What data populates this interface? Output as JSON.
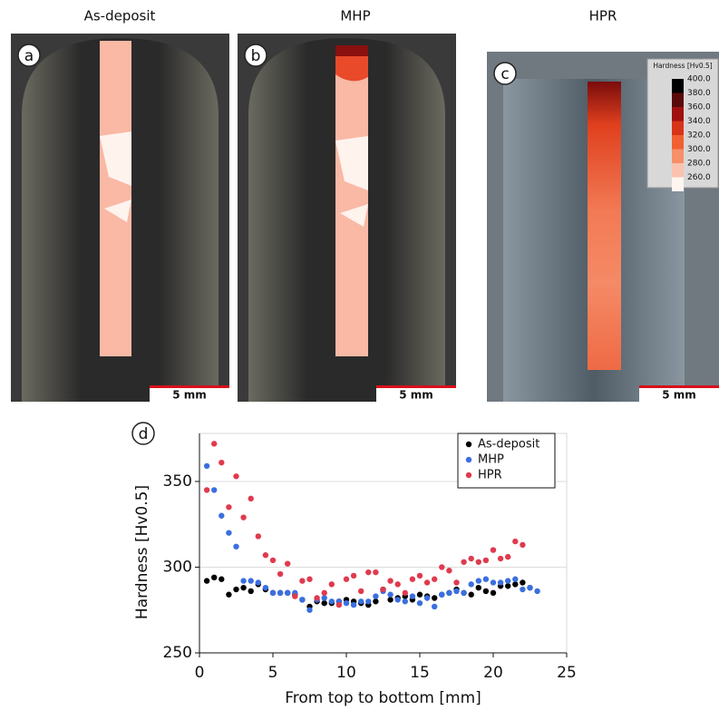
{
  "panels": [
    {
      "letter": "a",
      "title": "As-deposit",
      "scale_bar": "5 mm"
    },
    {
      "letter": "b",
      "title": "MHP",
      "scale_bar": "5 mm"
    },
    {
      "letter": "c",
      "title": "HPR",
      "scale_bar": "5 mm"
    }
  ],
  "colorbar": {
    "title": "Hardness [Hv0.5]",
    "ticks": [
      {
        "value": 400,
        "label": "400.0"
      },
      {
        "value": 380,
        "label": "380.0"
      },
      {
        "value": 360,
        "label": "360.0"
      },
      {
        "value": 340,
        "label": "340.0"
      },
      {
        "value": 320,
        "label": "320.0"
      },
      {
        "value": 300,
        "label": "300.0"
      },
      {
        "value": 280,
        "label": "280.0"
      },
      {
        "value": 260,
        "label": "260.0"
      }
    ],
    "colors": [
      "#000000",
      "#5a0a0a",
      "#a01010",
      "#d8341a",
      "#f06030",
      "#f7906a",
      "#fbc2b0",
      "#fff5f0"
    ]
  },
  "chart_data": {
    "type": "scatter",
    "panel_letter": "d",
    "x_label": "From top to bottom [mm]",
    "y_label": "Hardness [Hv0.5]",
    "xlim": [
      0,
      25
    ],
    "xticks": [
      0,
      5,
      10,
      15,
      20,
      25
    ],
    "ylim": [
      250,
      378
    ],
    "yticks": [
      250,
      300,
      350
    ],
    "grid": true,
    "legend_position": "upper right",
    "series": [
      {
        "name": "As-deposit",
        "color": "#000000",
        "x": [
          0.5,
          1,
          1.5,
          2,
          2.5,
          3,
          3.5,
          4,
          4.5,
          5,
          5.5,
          6,
          6.5,
          7,
          7.5,
          8,
          8.5,
          9,
          9.5,
          10,
          10.5,
          11,
          11.5,
          12,
          12.5,
          13,
          13.5,
          14,
          14.5,
          15,
          15.5,
          16,
          16.5,
          17,
          17.5,
          18,
          18.5,
          19,
          19.5,
          20,
          20.5,
          21,
          21.5,
          22,
          22.5
        ],
        "values": [
          292,
          294,
          293,
          284,
          287,
          288,
          286,
          290,
          287,
          285,
          285,
          285,
          284,
          281,
          277,
          280,
          279,
          279,
          280,
          281,
          280,
          279,
          278,
          280,
          287,
          281,
          282,
          283,
          281,
          284,
          283,
          282,
          284,
          285,
          287,
          285,
          284,
          288,
          286,
          285,
          289,
          289,
          290,
          291,
          288
        ]
      },
      {
        "name": "MHP",
        "color": "#3b6fe0",
        "x": [
          0.5,
          1,
          1.5,
          2,
          2.5,
          3,
          3.5,
          4,
          4.5,
          5,
          5.5,
          6,
          6.5,
          7,
          7.5,
          8,
          8.5,
          9,
          9.5,
          10,
          10.5,
          11,
          11.5,
          12,
          12.5,
          13,
          13.5,
          14,
          14.5,
          15,
          15.5,
          16,
          16.5,
          17,
          17.5,
          18,
          18.5,
          19,
          19.5,
          20,
          20.5,
          21,
          21.5,
          22,
          22.5,
          23
        ],
        "values": [
          359,
          345,
          330,
          320,
          312,
          292,
          292,
          291,
          288,
          285,
          285,
          285,
          285,
          281,
          275,
          281,
          282,
          280,
          280,
          279,
          278,
          280,
          280,
          283,
          286,
          284,
          281,
          280,
          283,
          279,
          282,
          277,
          284,
          285,
          286,
          285,
          290,
          292,
          293,
          291,
          291,
          292,
          293,
          287,
          288,
          286
        ]
      },
      {
        "name": "HPR",
        "color": "#e03a4e",
        "x": [
          0.5,
          1,
          1.5,
          2,
          2.5,
          3,
          3.5,
          4,
          4.5,
          5,
          5.5,
          6,
          6.5,
          7,
          7.5,
          8,
          8.5,
          9,
          9.5,
          10,
          10.5,
          11,
          11.5,
          12,
          12.5,
          13,
          13.5,
          14,
          14.5,
          15,
          15.5,
          16,
          16.5,
          17,
          17.5,
          18,
          18.5,
          19,
          19.5,
          20,
          20.5,
          21,
          21.5,
          22
        ],
        "values": [
          345,
          372,
          361,
          335,
          353,
          329,
          340,
          318,
          307,
          304,
          296,
          302,
          283,
          292,
          293,
          282,
          285,
          290,
          278,
          293,
          295,
          286,
          297,
          297,
          287,
          292,
          290,
          285,
          293,
          295,
          291,
          293,
          300,
          298,
          291,
          303,
          305,
          303,
          304,
          310,
          305,
          306,
          315,
          313
        ]
      }
    ]
  }
}
